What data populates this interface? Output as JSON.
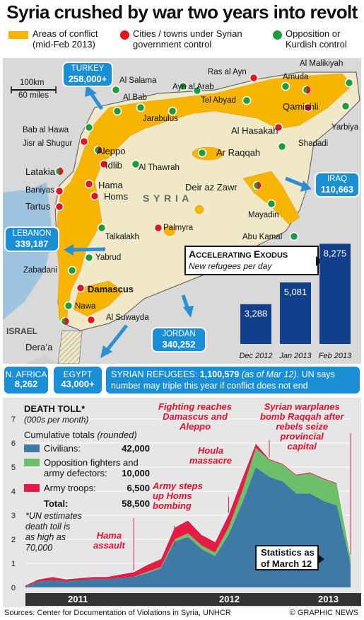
{
  "title": "Syria crushed by war two years into revolt",
  "legend": {
    "conflict": "Areas of conflict",
    "conflict_sub": "(mid-Feb 2013)",
    "gov": "Cities / towns under Syrian",
    "gov_sub": "government control",
    "opp": "Opposition or",
    "opp_sub": "Kurdish control"
  },
  "colors": {
    "conflict": "#f7b500",
    "government": "#e3141e",
    "opposition": "#1e9b3a",
    "blue": "#1a8fd6",
    "navy": "#123f8c",
    "civilians": "#3f79a6",
    "fighters": "#6cc06a",
    "troops": "#e51d45",
    "red_text": "#e0102f"
  },
  "map": {
    "scale_km": "100km",
    "scale_mi": "60 miles",
    "country": "S Y R I A",
    "israel": "ISRAEL",
    "places": {
      "al_salama": "Al Salama",
      "al_bab": "Al Bab",
      "ayn_al_arab": "Ayn al Arab",
      "ras_al_ayn": "Ras al Ayn",
      "amuda": "Amuda",
      "al_malikiyah": "Al Malikiyah",
      "jarabulus": "Jarabulus",
      "tel_abyad": "Tel Abyad",
      "qamishli": "Qamishli",
      "bab_al_hawa": "Bab al Hawa",
      "jisr": "Jisr al Shugur",
      "al_hasakah": "Al Hasakah",
      "yarbiya": "Yarbiya",
      "aleppo": "Aleppo",
      "idlib": "Idlib",
      "shadadi": "Shadadi",
      "latakia": "Latakia",
      "ar_raqqah": "Ar Raqqah",
      "al_thawrah": "Al Thawrah",
      "hama": "Hama",
      "deir": "Deir az Zawr",
      "baniyas": "Baniyas",
      "tartus": "Tartus",
      "homs": "Homs",
      "mayadin": "Mayadin",
      "talkalakh": "Talkalakh",
      "palmyra": "Palmyra",
      "abu_kamal": "Abu Kamal",
      "yabrud": "Yabrud",
      "zabadani": "Zabadani",
      "damascus": "Damascus",
      "nawa": "Nawa",
      "al_suwayda": "Al Suwayda",
      "deraa": "Dera’a"
    },
    "refugee_boxes": {
      "turkey": {
        "name": "TURKEY",
        "value": "258,000+"
      },
      "iraq": {
        "name": "IRAQ",
        "value": "110,663"
      },
      "lebanon": {
        "name": "LEBANON",
        "value": "339,187"
      },
      "jordan": {
        "name": "JORDAN",
        "value": "340,252"
      }
    }
  },
  "exodus": {
    "title_a": "A",
    "title_b": "CCELERATING ",
    "title_c": "E",
    "title_d": "XODUS",
    "subtitle": "New refugees per day"
  },
  "bottom_strip": {
    "n_africa": {
      "name": "N. AFRICA",
      "value": "8,262"
    },
    "egypt": {
      "name": "EGYPT",
      "value": "43,000+"
    },
    "refugees_label": "SYRIAN REFUGEES: ",
    "refugees_total": "1,100,579",
    "refugees_asof": " (as of Mar 12)",
    "refugees_note_a": ". UN says",
    "refugees_note_b": "number may triple this year if conflict does not end"
  },
  "death": {
    "title": "DEATH TOLL",
    "star": "*",
    "unit": "(000s per month)",
    "cum_label": "Cumulative totals ",
    "cum_round": "(rounded)",
    "rows": [
      {
        "label": "Civilians:",
        "value": "42,000"
      },
      {
        "label": "Opposition fighters and",
        "label2": "army defectors:",
        "value": "10,000"
      },
      {
        "label": "Army troops:",
        "value": "6,500"
      }
    ],
    "total_label": "Total:",
    "total_value": "58,500",
    "footnote": [
      "*UN estimates",
      "death toll is",
      "as high as",
      "70,000"
    ],
    "annotations": {
      "hama": [
        "Hama",
        "assault"
      ],
      "homs": [
        "Army steps",
        "up Homs",
        "bombing"
      ],
      "houla": [
        "Houla",
        "massacre"
      ],
      "fighting": [
        "Fighting reaches",
        "Damascus and",
        "Aleppo"
      ],
      "raqqah": [
        "Syrian warplanes",
        "bomb Raqqah after",
        "rebels seize",
        "provincial",
        "capital"
      ]
    },
    "stats_box": [
      "Statistics as",
      "of March 12"
    ],
    "years": [
      "2011",
      "2012",
      "2013"
    ]
  },
  "footer": {
    "sources": "Sources: Center for Documentation of Violations in Syria, UNHCR",
    "credit": "© GRAPHIC NEWS"
  },
  "chart_data": [
    {
      "type": "bar",
      "title": "ACCELERATING EXODUS",
      "subtitle": "New refugees per day",
      "categories": [
        "Dec 2012",
        "Jan 2013",
        "Feb 2013"
      ],
      "values": [
        3288,
        5081,
        8275
      ],
      "value_labels": [
        "3,288",
        "5,081",
        "8,275"
      ],
      "ylim": [
        0,
        9000
      ]
    },
    {
      "type": "area",
      "title": "DEATH TOLL*",
      "ylabel": "(000s per month)",
      "ylim": [
        0,
        7
      ],
      "yticks": [
        0,
        1,
        2,
        3,
        4,
        5,
        6,
        7
      ],
      "x": [
        "2011-03",
        "2011-04",
        "2011-05",
        "2011-06",
        "2011-07",
        "2011-08",
        "2011-09",
        "2011-10",
        "2011-11",
        "2011-12",
        "2012-01",
        "2012-02",
        "2012-03",
        "2012-04",
        "2012-05",
        "2012-06",
        "2012-07",
        "2012-08",
        "2012-09",
        "2012-10",
        "2012-11",
        "2012-12",
        "2013-01",
        "2013-02",
        "2013-03"
      ],
      "stacked": true,
      "series": [
        {
          "name": "Civilians",
          "values": [
            0.05,
            0.25,
            0.3,
            0.25,
            0.3,
            0.35,
            0.35,
            0.4,
            0.45,
            0.6,
            0.8,
            1.9,
            2.1,
            1.6,
            1.3,
            2.2,
            3.5,
            5.0,
            4.6,
            4.4,
            3.9,
            3.9,
            3.6,
            3.4,
            1.0
          ]
        },
        {
          "name": "Opposition fighters and army defectors",
          "values": [
            0.0,
            0.0,
            0.0,
            0.0,
            0.0,
            0.0,
            0.0,
            0.0,
            0.0,
            0.05,
            0.05,
            0.1,
            0.15,
            0.15,
            0.15,
            0.3,
            0.5,
            0.8,
            0.7,
            0.7,
            0.75,
            0.85,
            0.9,
            0.9,
            0.3
          ]
        },
        {
          "name": "Army troops",
          "values": [
            0.05,
            0.1,
            0.15,
            0.1,
            0.1,
            0.1,
            0.1,
            0.15,
            0.2,
            0.3,
            0.35,
            0.5,
            0.55,
            0.45,
            0.45,
            0.55,
            0.55,
            0.2,
            0.05,
            0.05,
            0.05,
            0.05,
            0.05,
            0.05,
            0.0
          ]
        }
      ]
    }
  ]
}
